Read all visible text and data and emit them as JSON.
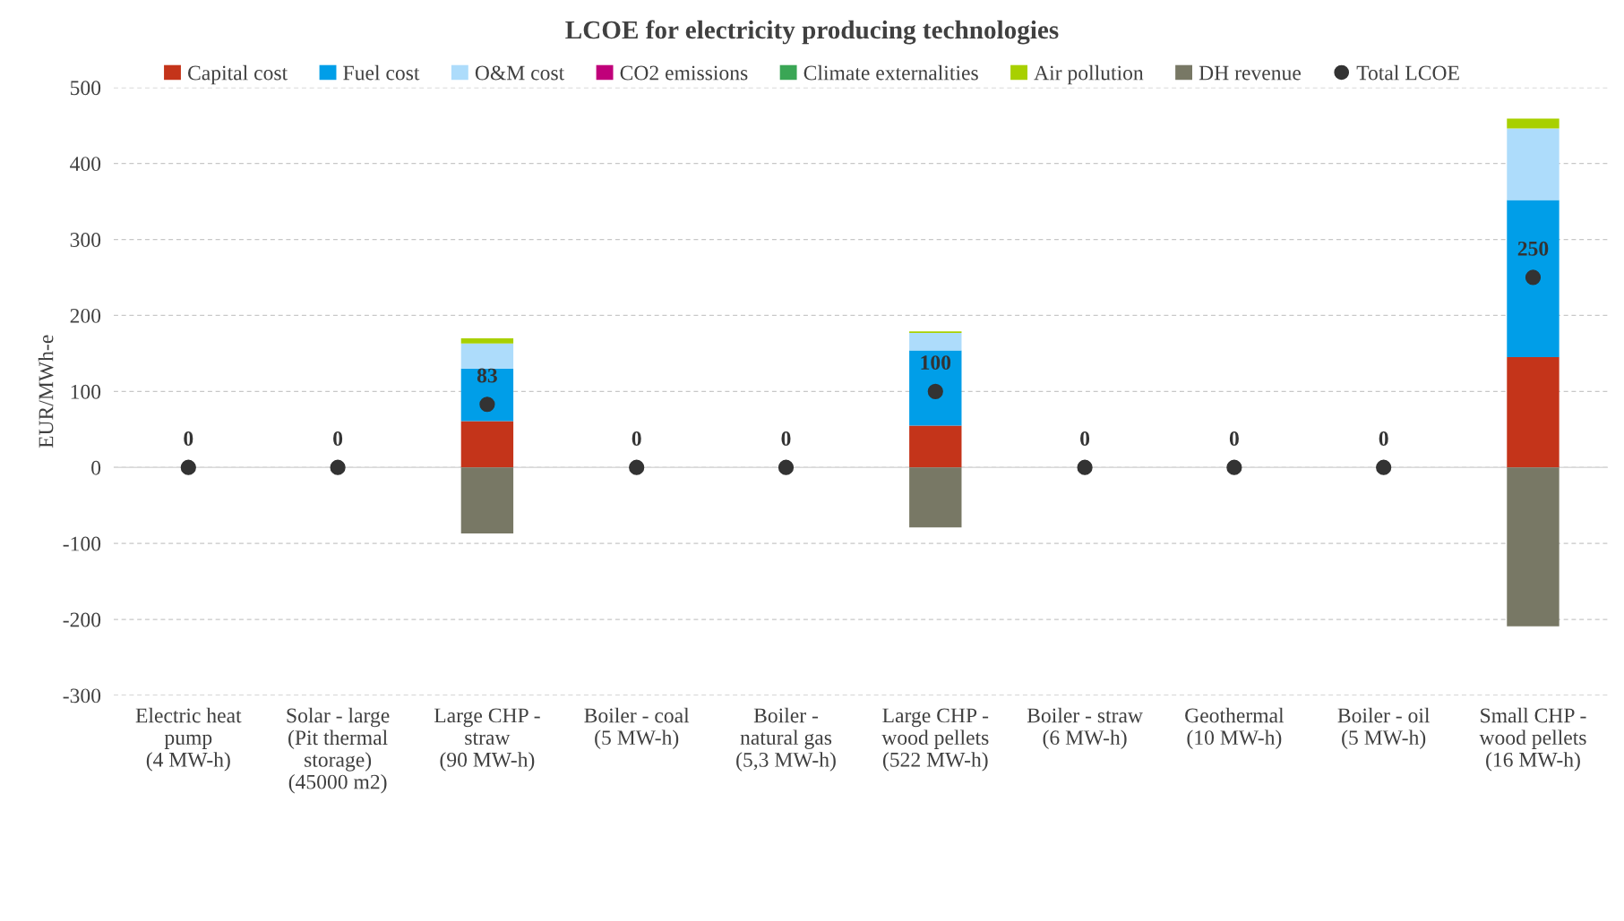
{
  "chart_data": {
    "type": "bar",
    "stacked": true,
    "title": "LCOE for electricity producing technologies",
    "ylabel": "EUR/MWh-e",
    "categories": [
      "Electric heat\npump\n(4 MW-h)",
      "Solar - large\n(Pit thermal\nstorage)\n(45000 m2)",
      "Large CHP -\nstraw\n(90 MW-h)",
      "Boiler - coal\n(5 MW-h)",
      "Boiler -\nnatural gas\n(5,3 MW-h)",
      "Large CHP -\nwood pellets\n(522 MW-h)",
      "Boiler - straw\n(6 MW-h)",
      "Geothermal\n(10 MW-h)",
      "Boiler - oil\n(5 MW-h)",
      "Small CHP -\nwood pellets\n(16 MW-h)"
    ],
    "series": [
      {
        "name": "Capital cost",
        "color": "#c4341a",
        "values": [
          0,
          0,
          61,
          0,
          0,
          55,
          0,
          0,
          0,
          145
        ]
      },
      {
        "name": "Fuel cost",
        "color": "#009ee8",
        "values": [
          0,
          0,
          69,
          0,
          0,
          99,
          0,
          0,
          0,
          207
        ]
      },
      {
        "name": "O&M cost",
        "color": "#addcfb",
        "values": [
          0,
          0,
          33,
          0,
          0,
          23,
          0,
          0,
          0,
          94
        ]
      },
      {
        "name": "CO2 emissions",
        "color": "#c0007a",
        "values": [
          0,
          0,
          0,
          0,
          0,
          0,
          0,
          0,
          0,
          0
        ]
      },
      {
        "name": "Climate externalities",
        "color": "#3aa655",
        "values": [
          0,
          0,
          0,
          0,
          0,
          0,
          0,
          0,
          0,
          0
        ]
      },
      {
        "name": "Air pollution",
        "color": "#a8d000",
        "values": [
          0,
          0,
          7,
          0,
          0,
          2,
          0,
          0,
          0,
          13
        ]
      },
      {
        "name": "DH revenue",
        "color": "#787865",
        "values": [
          0,
          0,
          -87,
          0,
          0,
          -79,
          0,
          0,
          0,
          -209
        ]
      },
      {
        "name": "Total LCOE",
        "type": "scatter",
        "marker": "circle",
        "data_labels": true,
        "color": "#333333",
        "values": [
          0,
          0,
          83,
          0,
          0,
          100,
          0,
          0,
          0,
          250
        ]
      }
    ],
    "ylim": [
      -300,
      500
    ],
    "yticks": [
      -300,
      -200,
      -100,
      0,
      100,
      200,
      300,
      400,
      500
    ],
    "grid": "y",
    "legend": "top"
  }
}
